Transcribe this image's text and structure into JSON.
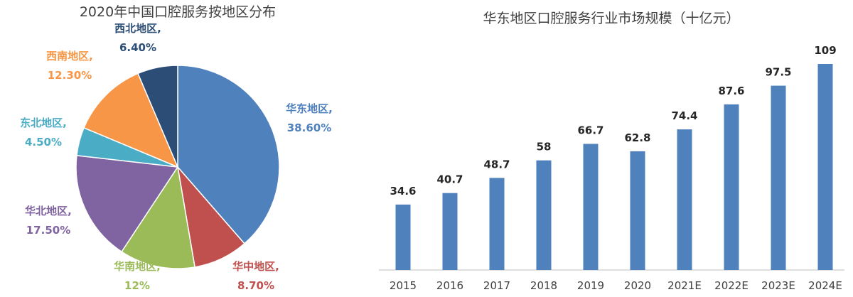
{
  "chart_data": [
    {
      "type": "pie",
      "title": "2020年中国口腔服务按地区分布",
      "slices": [
        {
          "label": "华东地区,",
          "value_text": "38.60%",
          "value": 38.6,
          "color": "#4F81BD"
        },
        {
          "label": "华中地区,",
          "value_text": "8.70%",
          "value": 8.7,
          "color": "#C0504D"
        },
        {
          "label": "华南地区,",
          "value_text": "12%",
          "value": 12.0,
          "color": "#9BBB59"
        },
        {
          "label": "华北地区,",
          "value_text": "17.50%",
          "value": 17.5,
          "color": "#8064A2"
        },
        {
          "label": "东北地区,",
          "value_text": "4.50%",
          "value": 4.5,
          "color": "#4BACC6"
        },
        {
          "label": "西南地区,",
          "value_text": "12.30%",
          "value": 12.3,
          "color": "#F79646"
        },
        {
          "label": "西北地区,",
          "value_text": "6.40%",
          "value": 6.4,
          "color": "#2C4D75"
        }
      ]
    },
    {
      "type": "bar",
      "title": "华东地区口腔服务行业市场规模（十亿元）",
      "categories": [
        "2015",
        "2016",
        "2017",
        "2018",
        "2019",
        "2020",
        "2021E",
        "2022E",
        "2023E",
        "2024E"
      ],
      "values": [
        34.6,
        40.7,
        48.7,
        58,
        66.7,
        62.8,
        74.4,
        87.6,
        97.5,
        109
      ],
      "value_labels": [
        "34.6",
        "40.7",
        "48.7",
        "58",
        "66.7",
        "62.8",
        "74.4",
        "87.6",
        "97.5",
        "109"
      ],
      "color": "#4F81BD",
      "ylim": [
        0,
        109
      ]
    }
  ]
}
